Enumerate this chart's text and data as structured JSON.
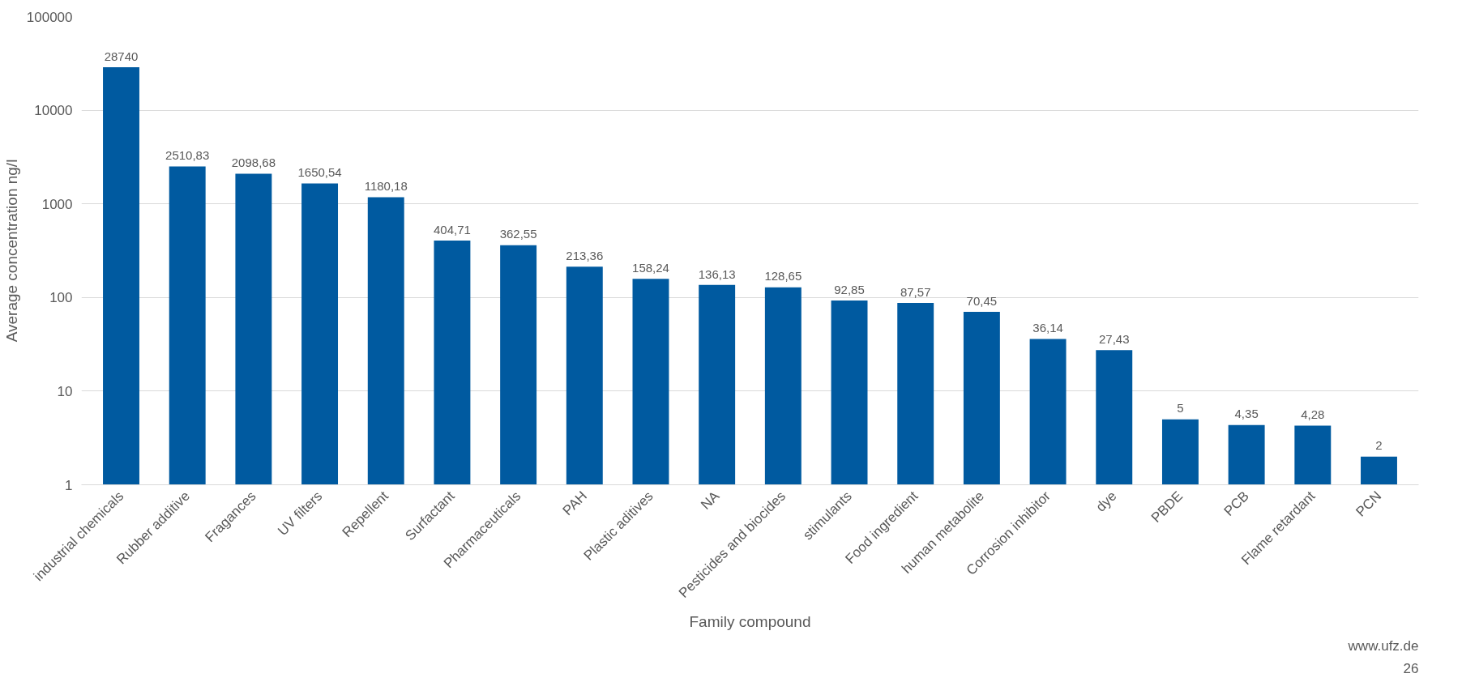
{
  "chart_data": {
    "type": "bar",
    "xlabel": "Family compound",
    "ylabel": "Average concentration ng/l",
    "categories": [
      "industrial chemicals",
      "Rubber additive",
      "Fragances",
      "UV filters",
      "Repellent",
      "Surfactant",
      "Pharmaceuticals",
      "PAH",
      "Plastic aditives",
      "NA",
      "Pesticides and biocides",
      "stimulants",
      "Food ingredient",
      "human metabolite",
      "Corrosion inhibitor",
      "dye",
      "PBDE",
      "PCB",
      "Flame retardant",
      "PCN"
    ],
    "values": [
      28740,
      2510.83,
      2098.68,
      1650.54,
      1180.18,
      404.71,
      362.55,
      213.36,
      158.24,
      136.13,
      128.65,
      92.85,
      87.57,
      70.45,
      36.14,
      27.43,
      5,
      4.35,
      4.28,
      2
    ],
    "value_labels": [
      "28740",
      "2510,83",
      "2098,68",
      "1650,54",
      "1180,18",
      "404,71",
      "362,55",
      "213,36",
      "158,24",
      "136,13",
      "128,65",
      "92,85",
      "87,57",
      "70,45",
      "36,14",
      "27,43",
      "5",
      "4,35",
      "4,28",
      "2"
    ],
    "color": "#005aa0",
    "log": "y",
    "ylim": [
      1,
      100000
    ],
    "yticks": [
      1,
      10,
      100,
      1000,
      10000,
      100000
    ],
    "grid": "y",
    "annotations": [
      "www.ufz.de",
      "26"
    ]
  }
}
